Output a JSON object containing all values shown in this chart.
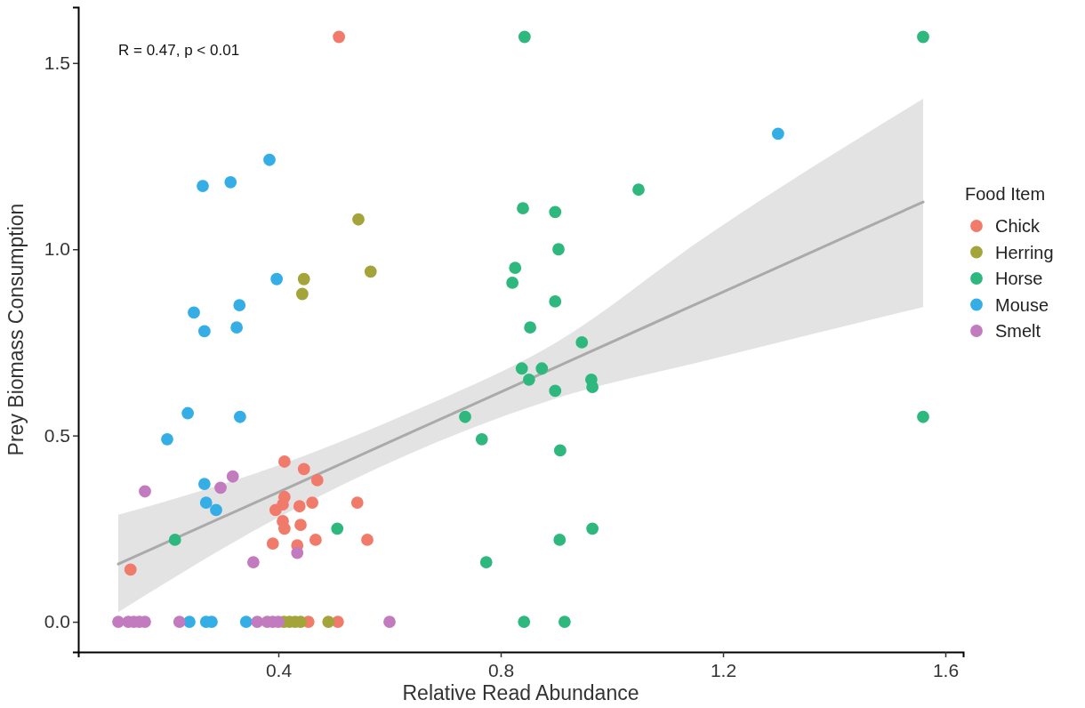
{
  "chart_data": {
    "type": "scatter",
    "xlabel": "Relative Read Abundance",
    "ylabel": "Prey Biomass Consumption",
    "legend_title": "Food Item",
    "legend": "right",
    "grid": false,
    "marker": "circle",
    "xlim": [
      0.04,
      1.632
    ],
    "xticks": [
      0.4,
      0.8,
      1.2,
      1.6
    ],
    "ylim": [
      -0.081,
      1.65
    ],
    "yticks": [
      {
        "value": 0,
        "label": "0.0"
      },
      {
        "value": 0.5,
        "label": "0.5"
      },
      {
        "value": 1,
        "label": "1.0"
      },
      {
        "value": 1.5,
        "label": "1.5"
      }
    ],
    "annotations": [
      "R = 0.47, p < 0.01"
    ],
    "series": [
      {
        "type": "line",
        "marker": "none",
        "color": "#aaaaaa",
        "x": [
          0.112,
          0.4,
          0.65,
          0.9,
          1.165,
          1.56
        ],
        "values": [
          0.155,
          0.348,
          0.516,
          0.684,
          0.862,
          1.127
        ],
        "lower": [
          0.026,
          0.28,
          0.46,
          0.6,
          0.7,
          0.845
        ],
        "upper": [
          0.287,
          0.42,
          0.57,
          0.75,
          1.03,
          1.404
        ]
      },
      {
        "name": "Chick",
        "color": "#f07b6b",
        "x": [
          0.411,
          0.446,
          0.47,
          0.411,
          0.395,
          0.408,
          0.438,
          0.461,
          0.542,
          0.408,
          0.411,
          0.44,
          0.39,
          0.467,
          0.56,
          0.434,
          0.134,
          0.509,
          0.454,
          0.507
        ],
        "values": [
          0.43,
          0.41,
          0.38,
          0.335,
          0.3,
          0.315,
          0.31,
          0.32,
          0.32,
          0.27,
          0.25,
          0.26,
          0.21,
          0.22,
          0.22,
          0.205,
          0.14,
          1.57,
          0,
          0
        ]
      },
      {
        "name": "Herring",
        "color": "#a3a53a",
        "x": [
          0.544,
          0.446,
          0.443,
          0.566,
          0.41,
          0.42,
          0.43,
          0.44,
          0.49
        ],
        "values": [
          1.08,
          0.92,
          0.88,
          0.94,
          0,
          0,
          0,
          0,
          0
        ]
      },
      {
        "name": "Horse",
        "color": "#2fb87e",
        "x": [
          0.843,
          1.56,
          1.048,
          0.84,
          0.898,
          0.904,
          0.826,
          0.821,
          0.898,
          0.853,
          0.946,
          0.838,
          0.874,
          0.851,
          0.898,
          0.963,
          0.965,
          0.736,
          0.766,
          0.907,
          1.56,
          0.965,
          0.906,
          0.774,
          0.842,
          0.915,
          0.506,
          0.214
        ],
        "values": [
          1.57,
          1.57,
          1.16,
          1.11,
          1.1,
          1.0,
          0.95,
          0.91,
          0.86,
          0.79,
          0.75,
          0.68,
          0.68,
          0.65,
          0.62,
          0.65,
          0.63,
          0.55,
          0.49,
          0.46,
          0.55,
          0.25,
          0.22,
          0.16,
          0,
          0,
          0.25,
          0.22
        ]
      },
      {
        "name": "Mouse",
        "color": "#35aee6",
        "x": [
          0.2,
          0.267,
          0.27,
          0.288,
          0.384,
          0.264,
          0.314,
          0.397,
          0.248,
          0.33,
          0.267,
          0.325,
          0.237,
          0.331,
          1.299,
          0.24,
          0.27,
          0.28,
          0.342
        ],
        "values": [
          0.49,
          0.37,
          0.32,
          0.3,
          1.24,
          1.17,
          1.18,
          0.92,
          0.83,
          0.85,
          0.78,
          0.79,
          0.56,
          0.55,
          1.31,
          0,
          0,
          0,
          0
        ]
      },
      {
        "name": "Smelt",
        "color": "#c27bbf",
        "x": [
          0.318,
          0.16,
          0.296,
          0.355,
          0.434,
          0.112,
          0.13,
          0.14,
          0.15,
          0.16,
          0.222,
          0.362,
          0.38,
          0.39,
          0.4,
          0.6
        ],
        "values": [
          0.39,
          0.35,
          0.36,
          0.16,
          0.185,
          0,
          0,
          0,
          0,
          0,
          0,
          0,
          0,
          0,
          0,
          0
        ]
      }
    ]
  }
}
